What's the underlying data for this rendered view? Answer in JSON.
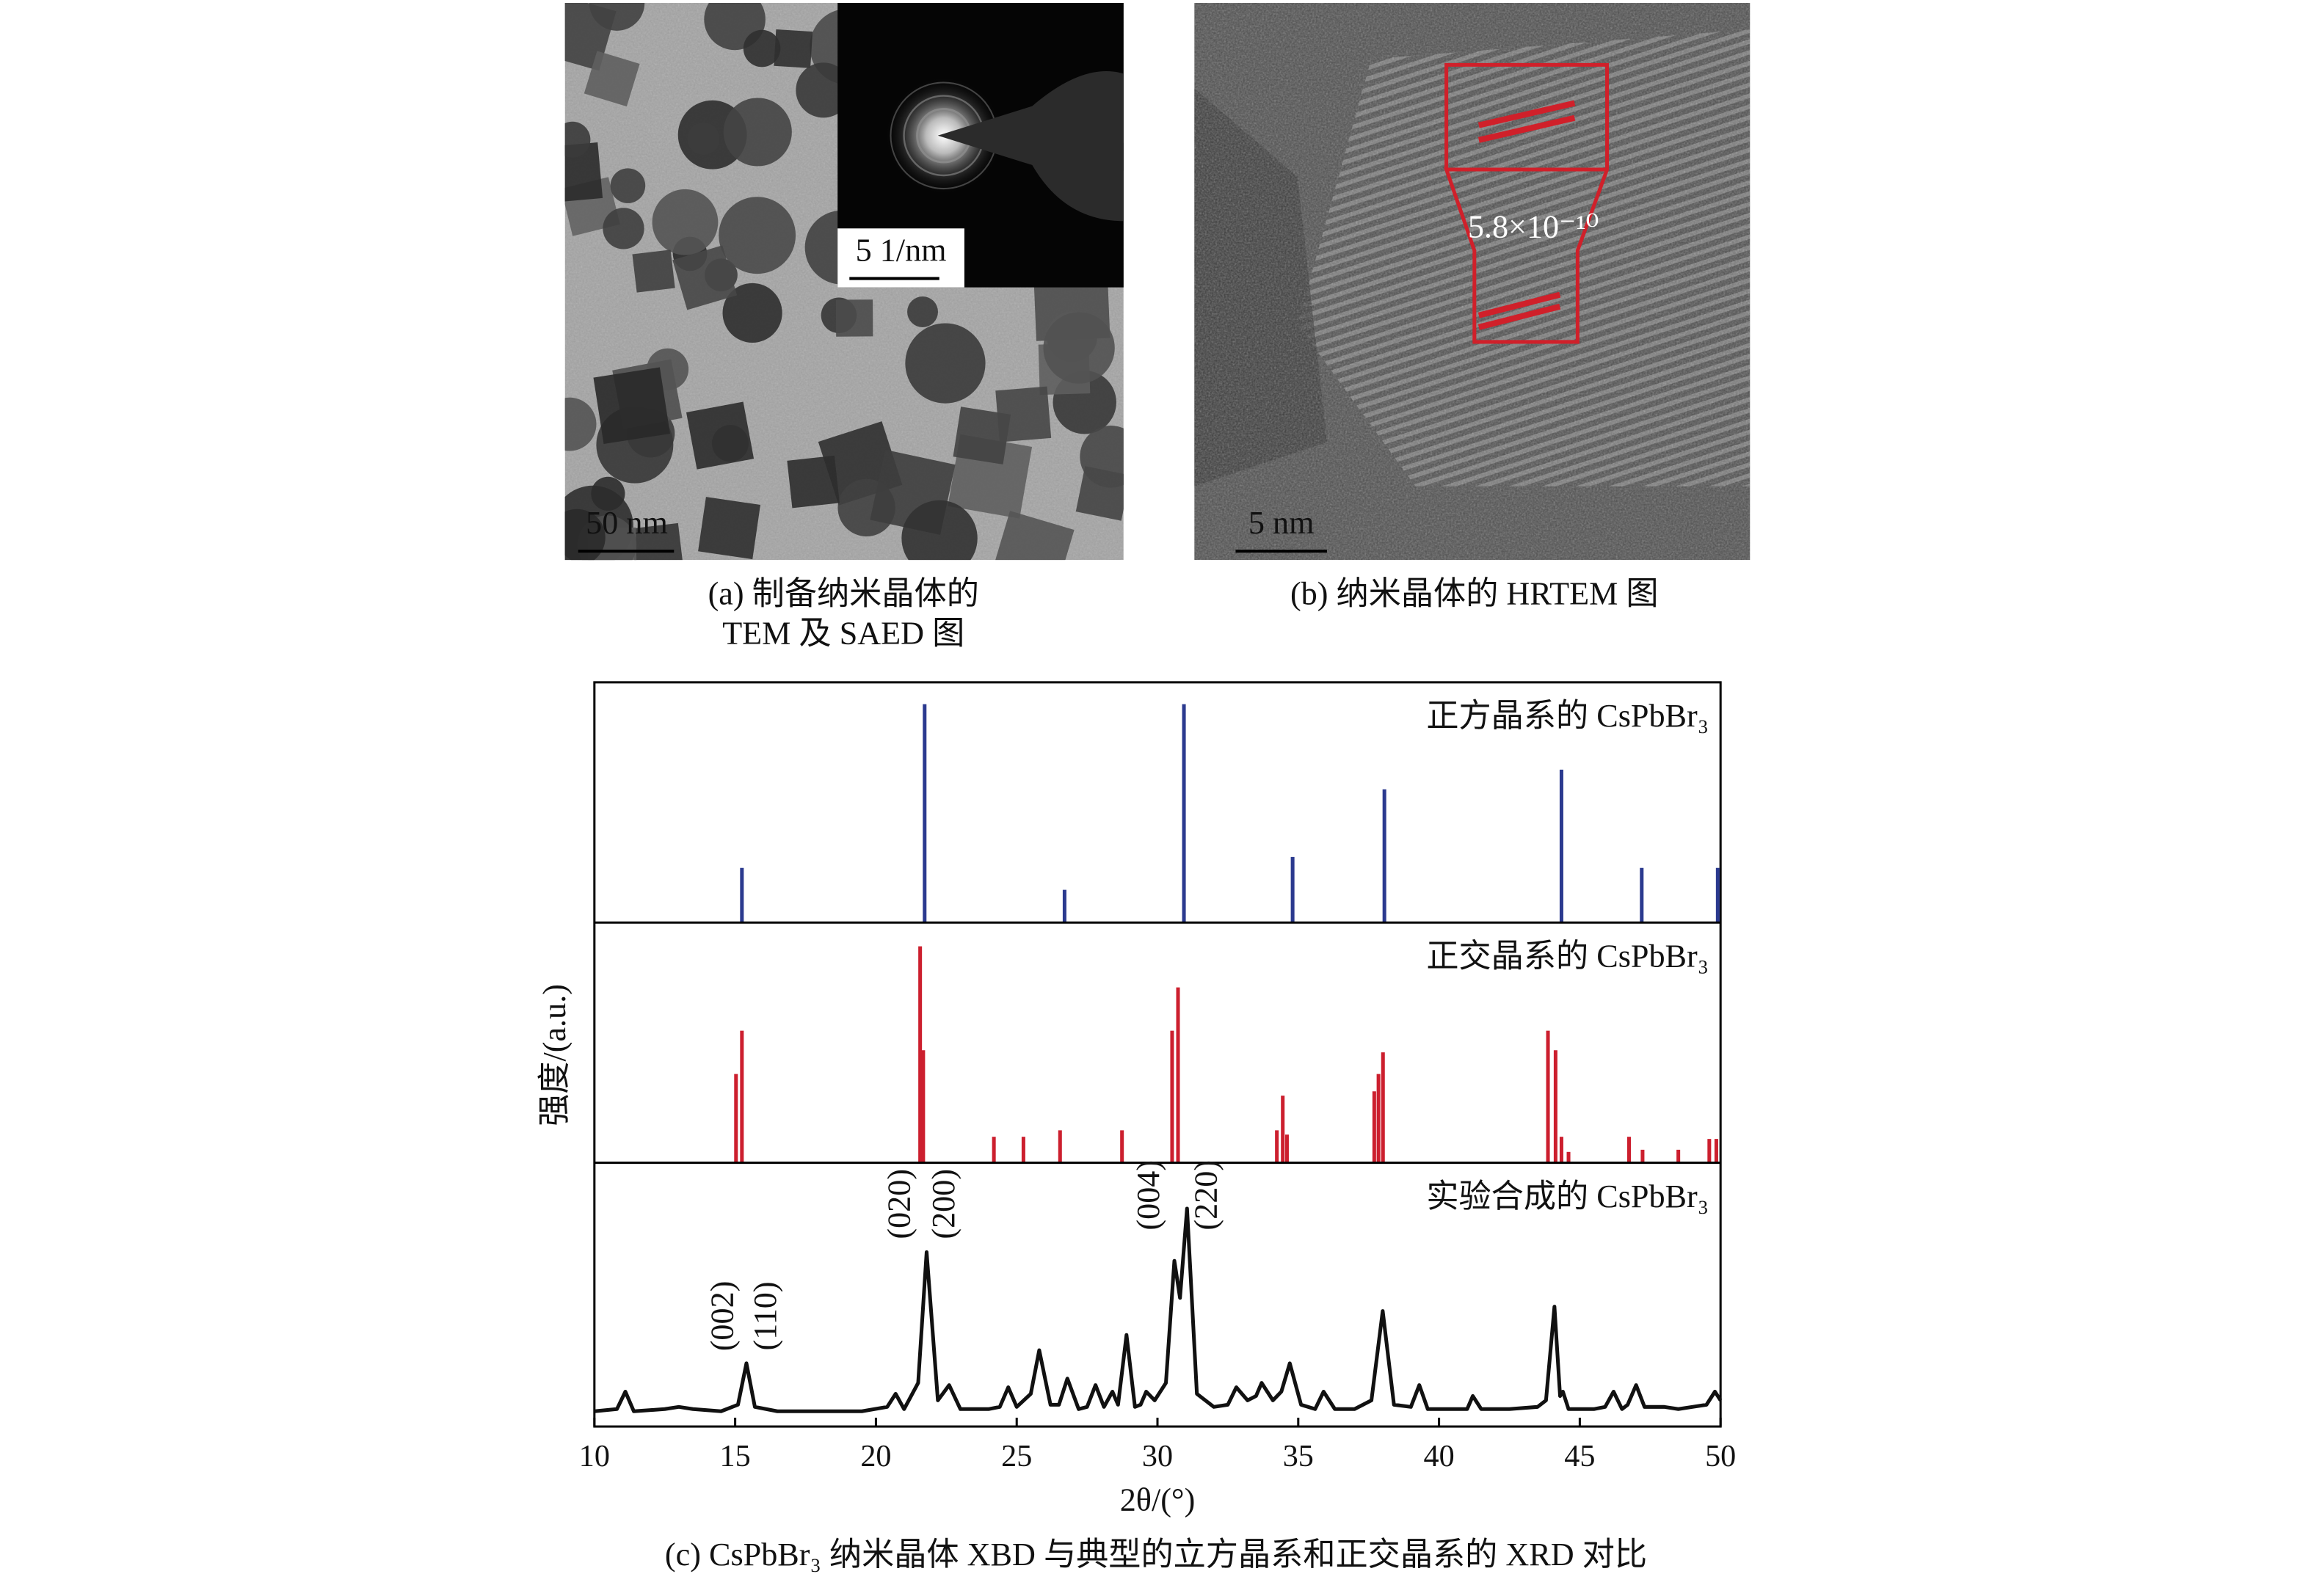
{
  "panels": [
    {
      "caption": [
        "(a) 制备纳米晶体的",
        "TEM 及 SAED 图"
      ],
      "scale_bar": "50 nm",
      "inset_scale_bar": "5 1/nm"
    },
    {
      "caption": [
        "(b) 纳米晶体的 HRTEM 图"
      ],
      "scale_bar": "5 nm",
      "annotation": "5.8×10⁻¹⁰"
    },
    {
      "caption": "(c) CsPbBr₃ 纳米晶体 XBD 与典型的立方晶系和正交晶系的 XRD 对比"
    }
  ],
  "chart_data": [
    {
      "type": "stem",
      "title": "正方晶系的 CsPbBr₃",
      "color": "#2b3a8f",
      "x": [
        15.24,
        21.73,
        26.7,
        30.94,
        34.8,
        38.06,
        44.35,
        47.2,
        49.9
      ],
      "values": [
        25,
        100,
        15,
        100,
        30,
        61,
        70,
        25,
        25
      ],
      "xlim": [
        10,
        50
      ],
      "ylim": [
        0,
        110
      ]
    },
    {
      "type": "stem",
      "title": "正交晶系的 CsPbBr₃",
      "ylabel": "强度/(a.u.)",
      "color": "#cc1f2e",
      "x": [
        15.03,
        15.24,
        21.57,
        21.68,
        24.19,
        25.24,
        26.54,
        28.74,
        30.52,
        30.73,
        34.24,
        34.45,
        34.6,
        37.7,
        37.85,
        38.01,
        43.87,
        44.14,
        44.35,
        44.6,
        46.75,
        47.23,
        48.5,
        49.6,
        49.85
      ],
      "values": [
        41,
        61,
        100,
        52,
        12,
        12,
        15,
        15,
        61,
        81,
        15,
        31,
        13,
        33,
        41,
        51,
        61,
        52,
        12,
        5,
        12,
        6,
        6,
        11,
        11
      ],
      "xlim": [
        10,
        50
      ],
      "ylim": [
        0,
        111
      ]
    },
    {
      "type": "line",
      "title": "实验合成的 CsPbBr₃",
      "color": "#111111",
      "xlabel": "2θ/(°)",
      "x": [
        10,
        10.8,
        11.1,
        11.4,
        12.5,
        13.0,
        13.5,
        14.5,
        15.1,
        15.4,
        15.7,
        16.5,
        17.5,
        18.5,
        19.5,
        20.4,
        20.7,
        21.0,
        21.5,
        21.8,
        22.2,
        22.6,
        23.0,
        24.0,
        24.4,
        24.7,
        25.0,
        25.5,
        25.8,
        26.2,
        26.5,
        26.8,
        27.2,
        27.5,
        27.8,
        28.1,
        28.4,
        28.6,
        28.9,
        29.2,
        29.4,
        29.6,
        29.9,
        30.3,
        30.6,
        30.8,
        31.05,
        31.4,
        32.0,
        32.5,
        32.8,
        33.2,
        33.5,
        33.7,
        34.1,
        34.4,
        34.7,
        35.1,
        35.6,
        35.9,
        36.3,
        37.0,
        37.6,
        38.0,
        38.4,
        39.0,
        39.3,
        39.6,
        40.5,
        41.0,
        41.2,
        41.5,
        42.5,
        43.5,
        43.8,
        44.1,
        44.3,
        44.4,
        44.6,
        45.5,
        45.9,
        46.2,
        46.5,
        46.7,
        47.0,
        47.3,
        48.0,
        48.5,
        49.0,
        49.5,
        49.8,
        50
      ],
      "values": [
        7,
        8,
        16,
        7,
        8,
        9,
        8,
        7,
        10,
        29,
        9,
        7,
        7,
        7,
        7,
        9,
        15,
        8,
        20,
        80,
        12,
        19,
        8,
        8,
        9,
        18,
        9,
        15,
        35,
        10,
        10,
        22,
        8,
        9,
        19,
        9,
        16,
        10,
        42,
        9,
        10,
        16,
        12,
        20,
        76,
        59,
        100,
        15,
        9,
        10,
        18,
        12,
        14,
        20,
        12,
        16,
        29,
        10,
        8,
        16,
        8,
        8,
        12,
        53,
        10,
        9,
        19,
        8,
        8,
        8,
        14,
        8,
        8,
        9,
        12,
        55,
        14,
        16,
        8,
        8,
        9,
        16,
        8,
        10,
        19,
        9,
        9,
        8,
        9,
        10,
        16,
        12
      ],
      "xlim": [
        10,
        50
      ],
      "ylim": [
        0,
        121
      ],
      "xticks": [
        10,
        15,
        20,
        25,
        30,
        35,
        40,
        45,
        50
      ],
      "annotations": [
        "(002)",
        "(110)",
        "(020)",
        "(200)",
        "(004)",
        "(220)"
      ]
    }
  ]
}
